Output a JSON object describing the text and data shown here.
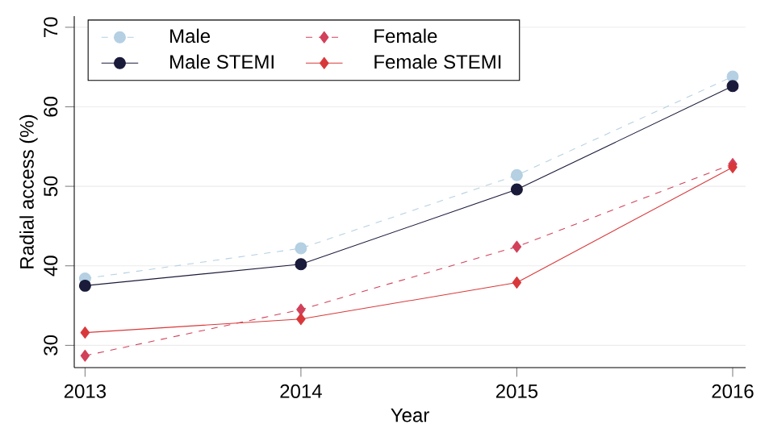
{
  "chart_data": {
    "type": "line",
    "xlabel": "Year",
    "ylabel": "Radial access (%)",
    "x": [
      2013,
      2014,
      2015,
      2016
    ],
    "xlim": [
      2012.95,
      2016.06
    ],
    "xticks": [
      2013,
      2014,
      2015,
      2016
    ],
    "ylim": [
      27.2,
      71.4
    ],
    "yticks": [
      30,
      40,
      50,
      60,
      70
    ],
    "grid": "y",
    "legend": "top left",
    "series": [
      {
        "name": "Male",
        "color": "#b4d0e2",
        "marker": "circle",
        "line_style": "dashed",
        "values": [
          38.4,
          42.2,
          51.4,
          63.8
        ]
      },
      {
        "name": "Female",
        "color": "#d2405a",
        "marker": "diamond",
        "line_style": "dashed",
        "values": [
          28.7,
          34.5,
          42.4,
          52.8
        ]
      },
      {
        "name": "Male STEMI",
        "color": "#1a1a3a",
        "marker": "circle",
        "line_style": "solid",
        "values": [
          37.5,
          40.2,
          49.6,
          62.6
        ]
      },
      {
        "name": "Female STEMI",
        "color": "#d9383a",
        "marker": "diamond",
        "line_style": "solid",
        "values": [
          31.6,
          33.3,
          37.9,
          52.4
        ]
      }
    ]
  }
}
